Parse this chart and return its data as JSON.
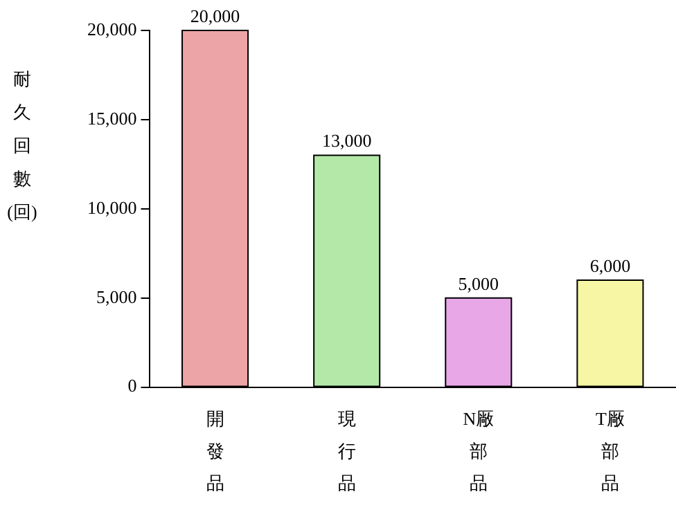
{
  "chart_data": {
    "type": "bar",
    "ylabel": "耐久回數(回)",
    "categories": [
      "開發品",
      "現行品",
      "N厰部品",
      "T厰部品"
    ],
    "values": [
      20000,
      13000,
      5000,
      6000
    ],
    "colors": [
      "#eca4a6",
      "#b4e8a8",
      "#e8a8e8",
      "#f6f6a4"
    ],
    "ylim": [
      0,
      20000
    ],
    "yticks": [
      {
        "value": 0,
        "label": "0"
      },
      {
        "value": 5000,
        "label": "5,000"
      },
      {
        "value": 10000,
        "label": "10,000"
      },
      {
        "value": 15000,
        "label": "15,000"
      },
      {
        "value": 20000,
        "label": "20,000"
      }
    ],
    "value_labels": [
      "20,000",
      "13,000",
      "5,000",
      "6,000"
    ],
    "grid": false,
    "legend": false
  }
}
